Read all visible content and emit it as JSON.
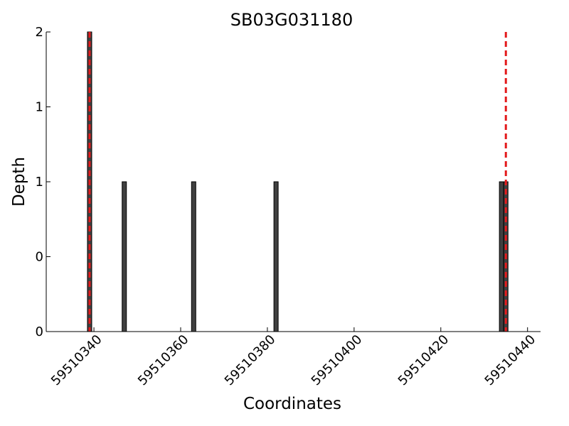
{
  "chart_data": {
    "type": "bar",
    "title": "SB03G031180",
    "xlabel": "Coordinates",
    "ylabel": "Depth",
    "xlim": [
      59510329,
      59510443
    ],
    "ylim": [
      0,
      2
    ],
    "x_ticks": [
      59510340,
      59510360,
      59510380,
      59510400,
      59510420,
      59510440
    ],
    "x_tick_labels": [
      "59510340",
      "59510360",
      "59510380",
      "59510400",
      "59510420",
      "59510440"
    ],
    "y_ticks": [
      0,
      0.5,
      1,
      1.5,
      2
    ],
    "y_tick_labels": [
      "0",
      "0",
      "1",
      "1",
      "2"
    ],
    "bars": [
      {
        "x": 59510339,
        "y": 2
      },
      {
        "x": 59510347,
        "y": 1
      },
      {
        "x": 59510363,
        "y": 1
      },
      {
        "x": 59510382,
        "y": 1
      },
      {
        "x": 59510434,
        "y": 1
      },
      {
        "x": 59510435,
        "y": 1
      }
    ],
    "markers": [
      59510339,
      59510435
    ],
    "bar_color": "#404040",
    "marker_color": "#e31a1c",
    "grid": false,
    "legend": "none"
  }
}
